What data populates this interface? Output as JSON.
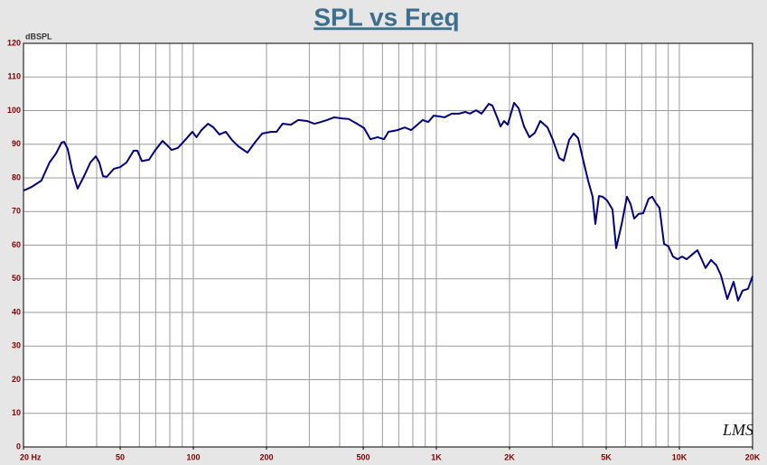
{
  "chart_data": {
    "type": "line",
    "title": "SPL vs Freq",
    "y_label": "dBSPL",
    "watermark": "LMS",
    "log_x": true,
    "grid": true,
    "xlim": [
      20,
      20000
    ],
    "ylim": [
      0,
      120
    ],
    "xticks": [
      {
        "value": 20,
        "label": "20 Hz"
      },
      50,
      100,
      200,
      500,
      {
        "value": 1000,
        "label": "1K"
      },
      {
        "value": 2000,
        "label": "2K"
      },
      {
        "value": 5000,
        "label": "5K"
      },
      {
        "value": 10000,
        "label": "10K"
      },
      {
        "value": 20000,
        "label": "20K"
      }
    ],
    "xgrid": [
      20,
      30,
      40,
      50,
      60,
      70,
      80,
      90,
      100,
      200,
      300,
      400,
      500,
      600,
      700,
      800,
      900,
      1000,
      2000,
      3000,
      4000,
      5000,
      6000,
      7000,
      8000,
      9000,
      10000,
      20000
    ],
    "yticks": [
      0,
      10,
      20,
      30,
      40,
      50,
      60,
      70,
      80,
      90,
      100,
      110,
      120
    ],
    "x": [
      20,
      21.6,
      23.7,
      25.6,
      27.2,
      28.7,
      29.4,
      30.4,
      31.8,
      33.4,
      35.5,
      37.7,
      39.7,
      41,
      42.5,
      44,
      47.1,
      50,
      53.1,
      56.8,
      58.8,
      61.4,
      65.7,
      69.8,
      74.7,
      78,
      81.4,
      86.4,
      92.6,
      99.1,
      103,
      108,
      115,
      121,
      128,
      136,
      144,
      153,
      167,
      180,
      192,
      209,
      220,
      233,
      252,
      270,
      294,
      315,
      334,
      355,
      380,
      407,
      436,
      471,
      504,
      535,
      573,
      609,
      635,
      692,
      741,
      787,
      835,
      879,
      926,
      974,
      1026,
      1080,
      1157,
      1239,
      1315,
      1373,
      1457,
      1534,
      1643,
      1700,
      1790,
      1836,
      1900,
      1966,
      2088,
      2180,
      2294,
      2415,
      2542,
      2676,
      2866,
      3016,
      3204,
      3342,
      3519,
      3672,
      3832,
      4000,
      4211,
      4395,
      4510,
      4667,
      4830,
      5040,
      5306,
      5492,
      5781,
      6085,
      6298,
      6516,
      6802,
      7099,
      7473,
      7734,
      8003,
      8282,
      8644,
      9021,
      9415,
      9826,
      10257,
      10706,
      11366,
      11864,
      12383,
      12814,
      13490,
      14200,
      14826,
      15741,
      16713,
      17438,
      18200,
      19160,
      20000
    ],
    "series": [
      {
        "name": "SPL",
        "color": "#000080",
        "values": [
          76.2,
          77.3,
          79.2,
          84.6,
          87.2,
          90.5,
          90.7,
          88.6,
          81.9,
          76.8,
          80.5,
          84.6,
          86.4,
          84.6,
          80.5,
          80.3,
          82.7,
          83.2,
          84.6,
          88.1,
          88.1,
          85.0,
          85.4,
          88.3,
          91.0,
          89.7,
          88.3,
          88.9,
          91.3,
          93.7,
          92.1,
          94.2,
          96.1,
          95.0,
          92.9,
          93.7,
          91.3,
          89.4,
          87.5,
          90.7,
          93.2,
          93.7,
          93.7,
          96.1,
          95.8,
          97.2,
          96.9,
          96.1,
          96.6,
          97.2,
          98.0,
          97.7,
          97.5,
          96.1,
          94.8,
          91.5,
          92.1,
          91.5,
          93.7,
          94.2,
          95.0,
          94.2,
          95.8,
          97.2,
          96.6,
          98.5,
          98.3,
          98.0,
          99.1,
          99.1,
          99.6,
          99.1,
          100.1,
          99.1,
          102.0,
          101.5,
          97.5,
          95.3,
          96.9,
          95.8,
          102.3,
          100.7,
          95.3,
          92.1,
          93.4,
          96.9,
          95.0,
          91.3,
          85.9,
          85.1,
          91.3,
          93.2,
          91.8,
          85.9,
          79.2,
          74.4,
          66.3,
          74.6,
          74.4,
          73.3,
          70.6,
          59.1,
          66.1,
          74.4,
          72.2,
          67.9,
          69.3,
          69.5,
          73.8,
          74.4,
          72.5,
          71.1,
          60.4,
          59.6,
          56.6,
          55.8,
          56.6,
          55.8,
          57.4,
          58.5,
          55.6,
          53.2,
          55.6,
          54.0,
          51.0,
          44.0,
          49.1,
          43.5,
          46.5,
          47.0,
          50.7
        ]
      }
    ]
  }
}
